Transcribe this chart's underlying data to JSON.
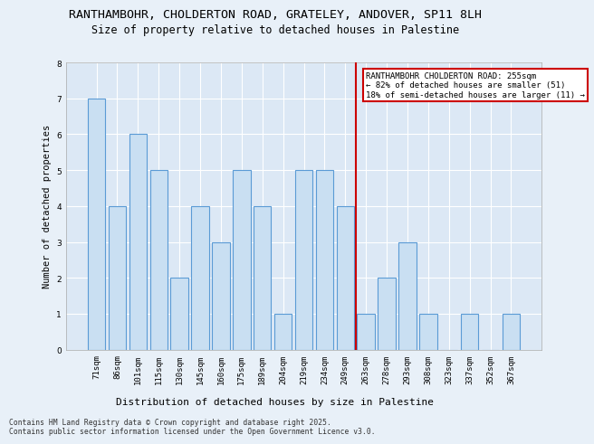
{
  "title_line1": "RANTHAMBOHR, CHOLDERTON ROAD, GRATELEY, ANDOVER, SP11 8LH",
  "title_line2": "Size of property relative to detached houses in Palestine",
  "xlabel": "Distribution of detached houses by size in Palestine",
  "ylabel": "Number of detached properties",
  "categories": [
    "71sqm",
    "86sqm",
    "101sqm",
    "115sqm",
    "130sqm",
    "145sqm",
    "160sqm",
    "175sqm",
    "189sqm",
    "204sqm",
    "219sqm",
    "234sqm",
    "249sqm",
    "263sqm",
    "278sqm",
    "293sqm",
    "308sqm",
    "323sqm",
    "337sqm",
    "352sqm",
    "367sqm"
  ],
  "values": [
    7,
    4,
    6,
    5,
    2,
    4,
    3,
    5,
    4,
    1,
    5,
    5,
    4,
    1,
    2,
    3,
    1,
    0,
    1,
    0,
    1
  ],
  "bar_color": "#c9dff2",
  "bar_edgecolor": "#5b9bd5",
  "bar_linewidth": 0.8,
  "vline_x": 12.5,
  "vline_color": "#cc0000",
  "ylim": [
    0,
    8
  ],
  "yticks": [
    0,
    1,
    2,
    3,
    4,
    5,
    6,
    7,
    8
  ],
  "annotation_text": "RANTHAMBOHR CHOLDERTON ROAD: 255sqm\n← 82% of detached houses are smaller (51)\n18% of semi-detached houses are larger (11) →",
  "annotation_box_edgecolor": "#cc0000",
  "annotation_fontsize": 6.5,
  "background_color": "#e8f0f8",
  "plot_background": "#dce8f5",
  "grid_color": "#ffffff",
  "footer_text": "Contains HM Land Registry data © Crown copyright and database right 2025.\nContains public sector information licensed under the Open Government Licence v3.0.",
  "title_fontsize": 9.5,
  "subtitle_fontsize": 8.5,
  "xlabel_fontsize": 8,
  "ylabel_fontsize": 7.5,
  "tick_fontsize": 6.5,
  "footer_fontsize": 5.8
}
